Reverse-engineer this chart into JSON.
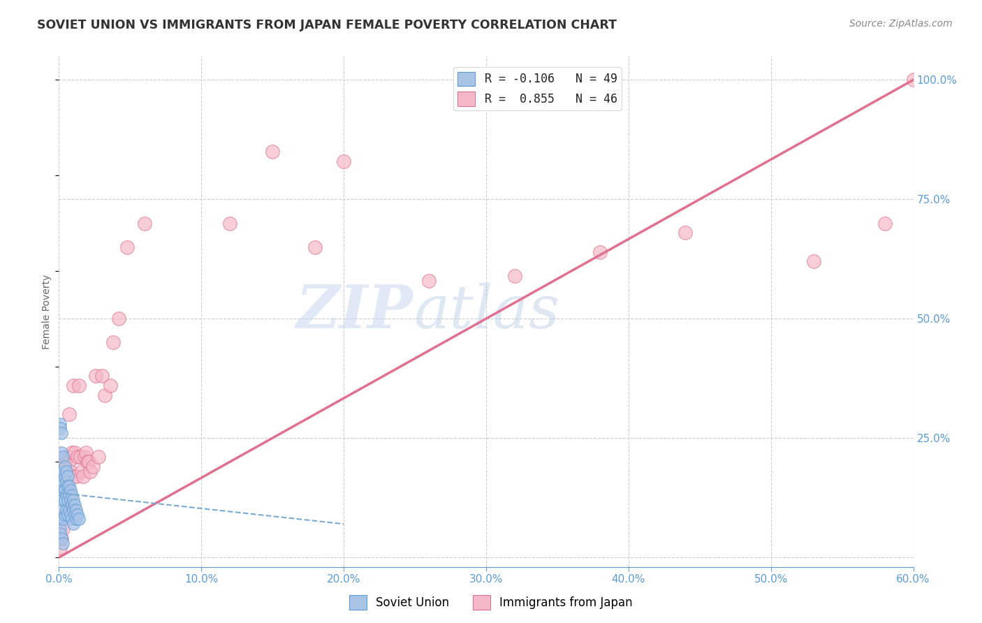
{
  "title": "SOVIET UNION VS IMMIGRANTS FROM JAPAN FEMALE POVERTY CORRELATION CHART",
  "source": "Source: ZipAtlas.com",
  "ylabel": "Female Poverty",
  "watermark_zip": "ZIP",
  "watermark_atlas": "atlas",
  "legend_entries": [
    {
      "label_r": "R = -0.106",
      "label_n": "N = 49",
      "color": "#aac4e8"
    },
    {
      "label_r": "R =  0.855",
      "label_n": "N = 46",
      "color": "#f4b8c8"
    }
  ],
  "legend_labels_bottom": [
    "Soviet Union",
    "Immigrants from Japan"
  ],
  "xlim": [
    0.0,
    0.6
  ],
  "ylim": [
    -0.02,
    1.05
  ],
  "yticks": [
    0.0,
    0.25,
    0.5,
    0.75,
    1.0
  ],
  "ytick_labels": [
    "",
    "25.0%",
    "50.0%",
    "75.0%",
    "100.0%"
  ],
  "xticks": [
    0.0,
    0.1,
    0.2,
    0.3,
    0.4,
    0.5,
    0.6
  ],
  "grid_color": "#cccccc",
  "background_color": "#ffffff",
  "title_color": "#333333",
  "axis_color": "#5b9bd5",
  "soviet_color": "#aac4e8",
  "japan_color": "#f4b8c8",
  "soviet_edge": "#5b9bd5",
  "japan_edge": "#e07090",
  "regression_pink": "#e07090",
  "regression_blue_dash": "#7aaad0",
  "japan_regression_x0": 0.0,
  "japan_regression_y0": 0.0,
  "japan_regression_x1": 0.6,
  "japan_regression_y1": 1.0,
  "soviet_regression_x0": 0.0,
  "soviet_regression_y0": 0.135,
  "soviet_regression_x1": 0.2,
  "soviet_regression_y1": 0.07,
  "soviet_points_x": [
    0.001,
    0.001,
    0.001,
    0.001,
    0.002,
    0.002,
    0.002,
    0.002,
    0.002,
    0.003,
    0.003,
    0.003,
    0.003,
    0.003,
    0.003,
    0.004,
    0.004,
    0.004,
    0.004,
    0.004,
    0.005,
    0.005,
    0.005,
    0.005,
    0.006,
    0.006,
    0.006,
    0.006,
    0.007,
    0.007,
    0.007,
    0.008,
    0.008,
    0.008,
    0.009,
    0.009,
    0.009,
    0.01,
    0.01,
    0.01,
    0.011,
    0.011,
    0.012,
    0.012,
    0.013,
    0.014,
    0.001,
    0.002,
    0.003
  ],
  "soviet_points_y": [
    0.28,
    0.27,
    0.08,
    0.06,
    0.26,
    0.22,
    0.17,
    0.15,
    0.1,
    0.21,
    0.18,
    0.16,
    0.14,
    0.12,
    0.08,
    0.19,
    0.17,
    0.14,
    0.12,
    0.09,
    0.18,
    0.16,
    0.13,
    0.1,
    0.17,
    0.15,
    0.12,
    0.09,
    0.15,
    0.13,
    0.1,
    0.14,
    0.12,
    0.09,
    0.13,
    0.11,
    0.08,
    0.12,
    0.1,
    0.07,
    0.11,
    0.09,
    0.1,
    0.08,
    0.09,
    0.08,
    0.05,
    0.04,
    0.03
  ],
  "japan_points_x": [
    0.001,
    0.002,
    0.003,
    0.004,
    0.005,
    0.005,
    0.006,
    0.007,
    0.007,
    0.008,
    0.009,
    0.01,
    0.01,
    0.011,
    0.012,
    0.013,
    0.014,
    0.015,
    0.016,
    0.017,
    0.018,
    0.019,
    0.02,
    0.021,
    0.022,
    0.024,
    0.026,
    0.028,
    0.03,
    0.032,
    0.036,
    0.038,
    0.042,
    0.048,
    0.06,
    0.12,
    0.15,
    0.18,
    0.2,
    0.26,
    0.32,
    0.38,
    0.44,
    0.53,
    0.58,
    0.6
  ],
  "japan_points_y": [
    0.02,
    0.04,
    0.06,
    0.2,
    0.09,
    0.21,
    0.13,
    0.2,
    0.3,
    0.18,
    0.22,
    0.17,
    0.36,
    0.22,
    0.17,
    0.21,
    0.36,
    0.21,
    0.18,
    0.17,
    0.21,
    0.22,
    0.2,
    0.2,
    0.18,
    0.19,
    0.38,
    0.21,
    0.38,
    0.34,
    0.36,
    0.45,
    0.5,
    0.65,
    0.7,
    0.7,
    0.85,
    0.65,
    0.83,
    0.58,
    0.59,
    0.64,
    0.68,
    0.62,
    0.7,
    1.0
  ]
}
